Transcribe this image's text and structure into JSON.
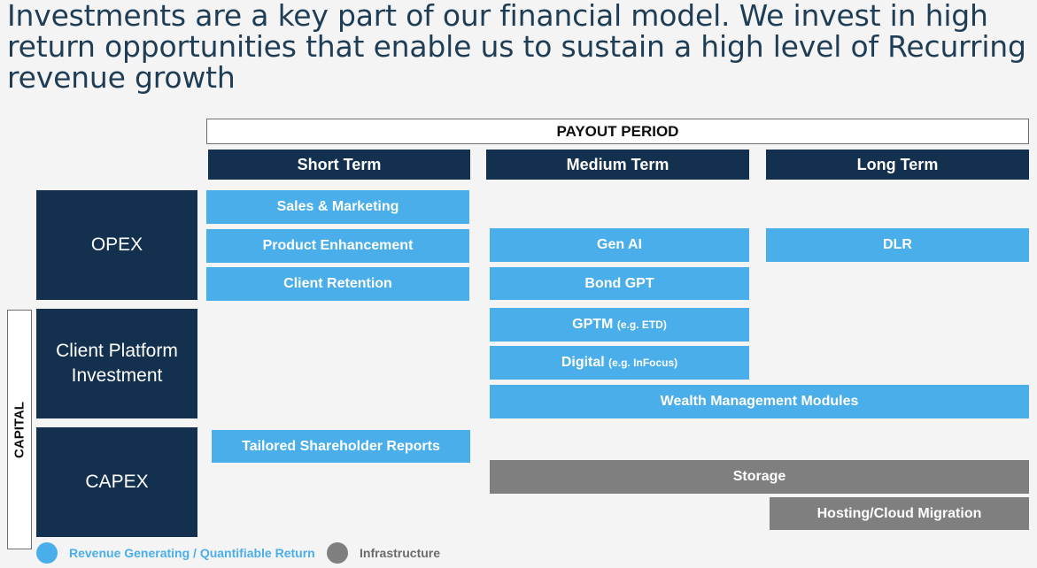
{
  "title": "Investments are a key part of our financial model. We invest in high return opportunities that enable us to sustain a high level of Recurring revenue growth",
  "payout_period": "PAYOUT PERIOD",
  "columns": {
    "short": "Short Term",
    "medium": "Medium Term",
    "long": "Long Term"
  },
  "categories": {
    "opex": "OPEX",
    "client_platform": "Client Platform Investment",
    "capex": "CAPEX",
    "capital": "CAPITAL"
  },
  "items": {
    "sales_marketing": "Sales & Marketing",
    "product_enhancement": "Product Enhancement",
    "client_retention": "Client Retention",
    "gen_ai": "Gen AI",
    "dlr": "DLR",
    "bond_gpt": "Bond GPT",
    "gptm": "GPTM",
    "gptm_note": "(e.g. ETD)",
    "digital": "Digital",
    "digital_note": "(e.g. InFocus)",
    "wealth_management": "Wealth Management Modules",
    "tailored_reports": "Tailored Shareholder Reports",
    "storage": "Storage",
    "hosting": "Hosting/Cloud Migration"
  },
  "legend": {
    "revenue": "Revenue Generating / Quantifiable Return",
    "infrastructure": "Infrastructure"
  },
  "colors": {
    "navy": "#13314f",
    "blue": "#4aaeea",
    "gray": "#7f7f7f",
    "title": "#1f3d55"
  }
}
